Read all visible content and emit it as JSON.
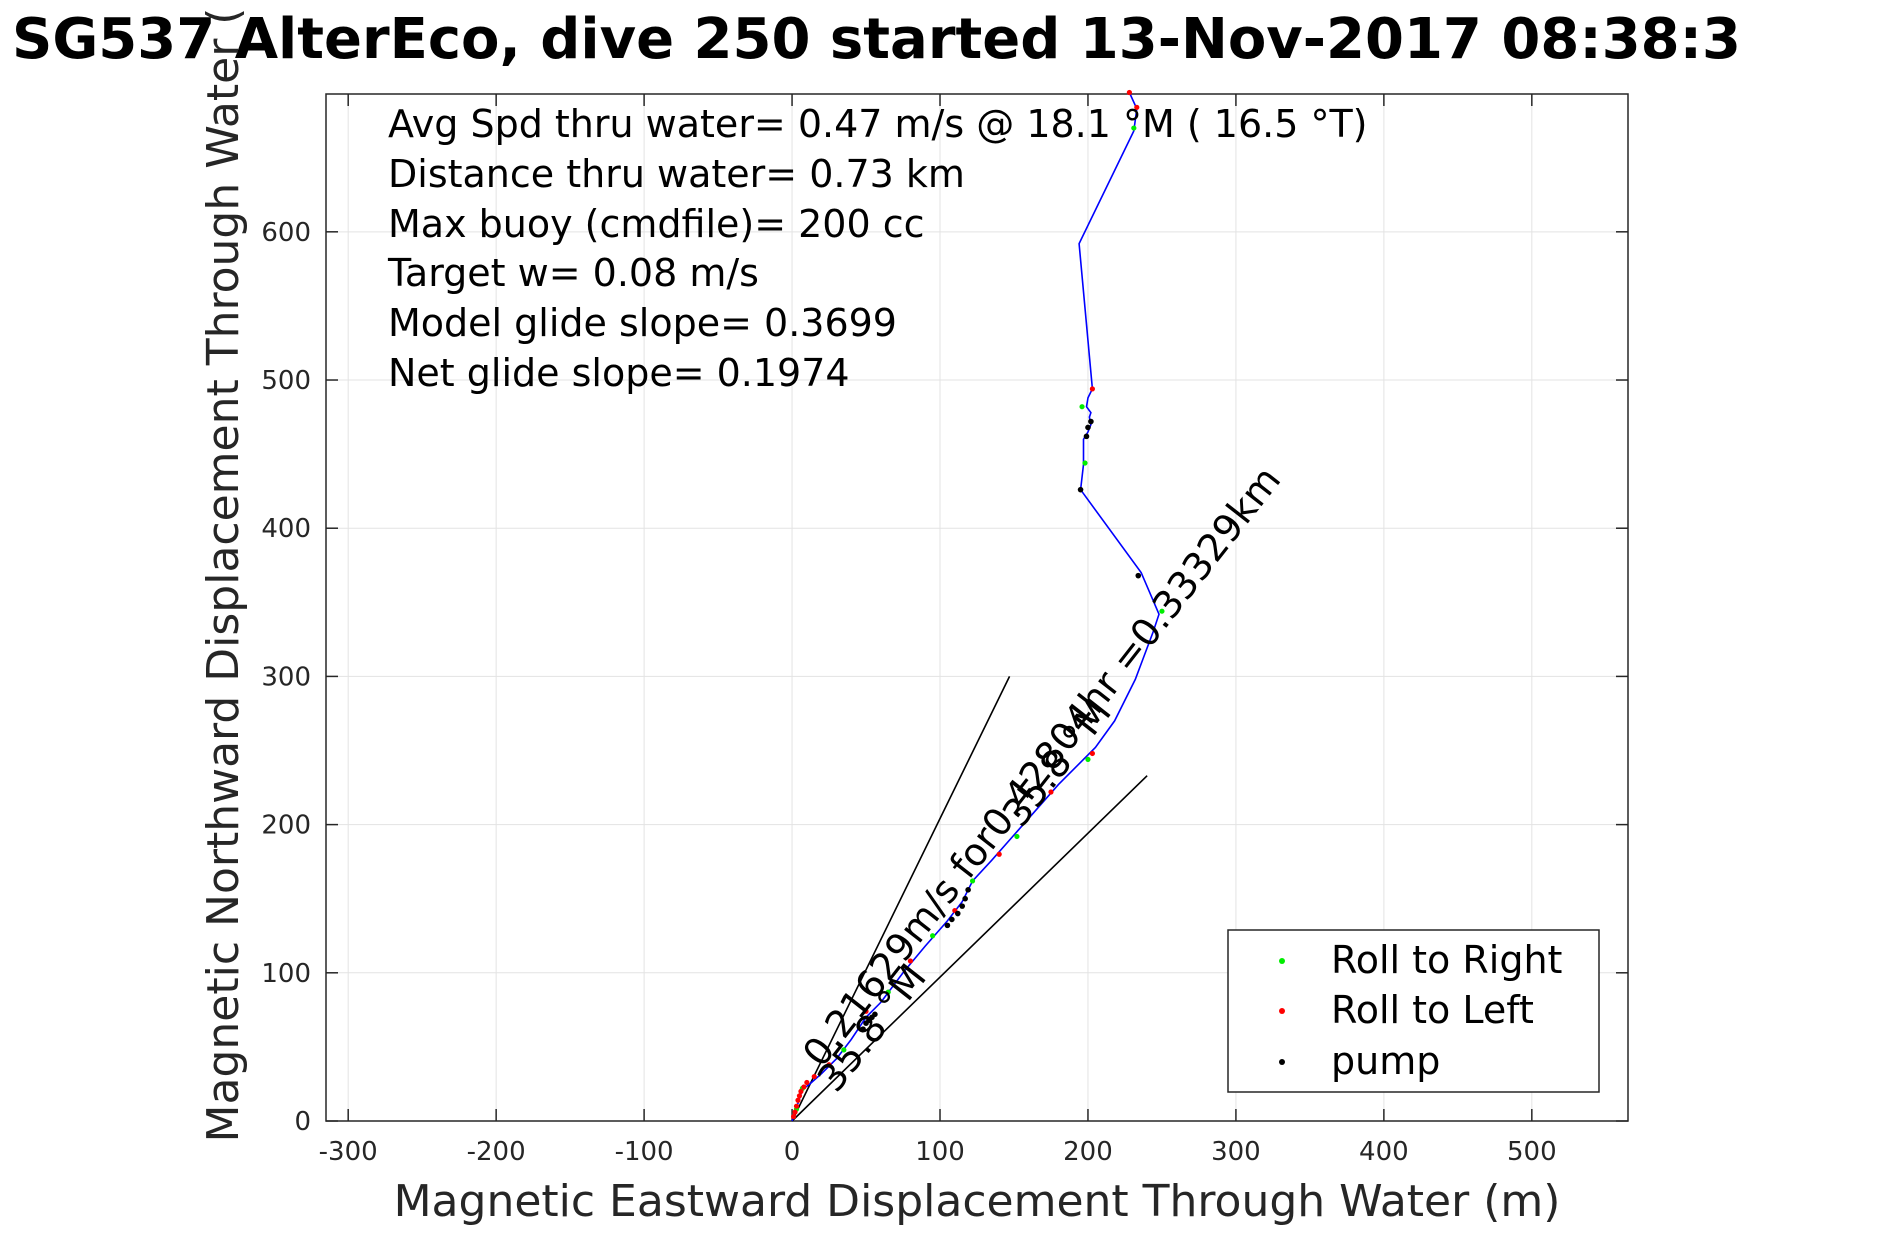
{
  "chart_data": {
    "type": "line",
    "title": "SG537 AlterEco, dive 250 started 13-Nov-2017 08:38:3",
    "xlabel": "Magnetic Eastward Displacement Through Water (m)",
    "ylabel": "Magnetic Northward Displacement Through Water (",
    "xlim": [
      -315,
      565
    ],
    "ylim": [
      0,
      693
    ],
    "xticks": [
      -300,
      -200,
      -100,
      0,
      100,
      200,
      300,
      400,
      500
    ],
    "yticks": [
      0,
      100,
      200,
      300,
      400,
      500,
      600
    ],
    "grid": true,
    "legend_position": "bottom-right",
    "colors": {
      "track": "#0000ff",
      "roll_right": "#00ee00",
      "roll_left": "#ff0000",
      "pump": "#000000",
      "wedge": "#000000",
      "grid": "#e3e3e3",
      "axis": "#262626",
      "text": "#000000"
    },
    "annotation_lines": [
      "Avg Spd thru water=  0.47 m/s @  18.1 °M ( 16.5 °T)",
      "Distance thru water=  0.73 km",
      "Max buoy (cmdfile)= 200 cc",
      "Target w= 0.08 m/s",
      "Model glide slope= 0.3699",
      "Net glide slope= 0.1974"
    ],
    "rotated_labels": [
      {
        "text": "0.21629m/s for0.42804hr =0.33329km",
        "x": 20,
        "y": 35,
        "angle_deg": 52
      },
      {
        "text": "35.8 °M",
        "x": 30,
        "y": 18,
        "angle_deg": 52
      },
      {
        "text": "35.8 °M",
        "x": 155,
        "y": 197,
        "angle_deg": 52
      }
    ],
    "wedge_lines": [
      {
        "x": [
          0,
          147
        ],
        "y": [
          0,
          300
        ]
      },
      {
        "x": [
          0,
          240
        ],
        "y": [
          0,
          233
        ]
      }
    ],
    "track": {
      "name": "",
      "x": [
        0,
        2,
        4,
        6,
        8,
        12,
        20,
        30,
        40,
        50,
        60,
        75,
        90,
        105,
        115,
        122,
        135,
        150,
        165,
        180,
        193,
        205,
        218,
        232,
        244,
        248,
        236,
        195,
        197,
        197,
        200,
        202,
        201,
        202,
        199,
        200,
        203,
        194,
        231,
        233,
        228
      ],
      "y": [
        0,
        5,
        12,
        18,
        22,
        25,
        32,
        42,
        55,
        70,
        80,
        100,
        118,
        135,
        148,
        162,
        176,
        193,
        210,
        227,
        240,
        252,
        270,
        298,
        330,
        342,
        370,
        426,
        443,
        460,
        465,
        470,
        475,
        478,
        482,
        488,
        494,
        592,
        668,
        683,
        694
      ]
    },
    "roll_right_points": {
      "x": [
        3,
        7,
        35,
        65,
        95,
        122,
        152,
        200,
        250,
        198,
        196,
        231
      ],
      "y": [
        8,
        22,
        48,
        87,
        125,
        162,
        192,
        244,
        344,
        444,
        482,
        670
      ]
    },
    "roll_left_points": {
      "x": [
        1,
        2,
        3,
        4,
        5,
        6,
        8,
        10,
        15,
        25,
        50,
        80,
        110,
        140,
        175,
        203,
        203,
        233,
        228
      ],
      "y": [
        3,
        6,
        10,
        14,
        17,
        20,
        23,
        26,
        30,
        38,
        74,
        108,
        142,
        180,
        222,
        248,
        494,
        684,
        694
      ]
    },
    "pump_points": {
      "x": [
        48,
        50,
        52,
        54,
        56,
        105,
        108,
        112,
        115,
        117,
        119,
        195,
        199,
        200,
        202,
        234
      ],
      "y": [
        62,
        66,
        68,
        70,
        72,
        132,
        136,
        140,
        145,
        150,
        156,
        426,
        462,
        468,
        472,
        368
      ]
    },
    "legend": [
      {
        "label": "Roll to Right",
        "color": "#00ee00"
      },
      {
        "label": "Roll to Left",
        "color": "#ff0000"
      },
      {
        "label": "pump",
        "color": "#000000"
      }
    ]
  }
}
